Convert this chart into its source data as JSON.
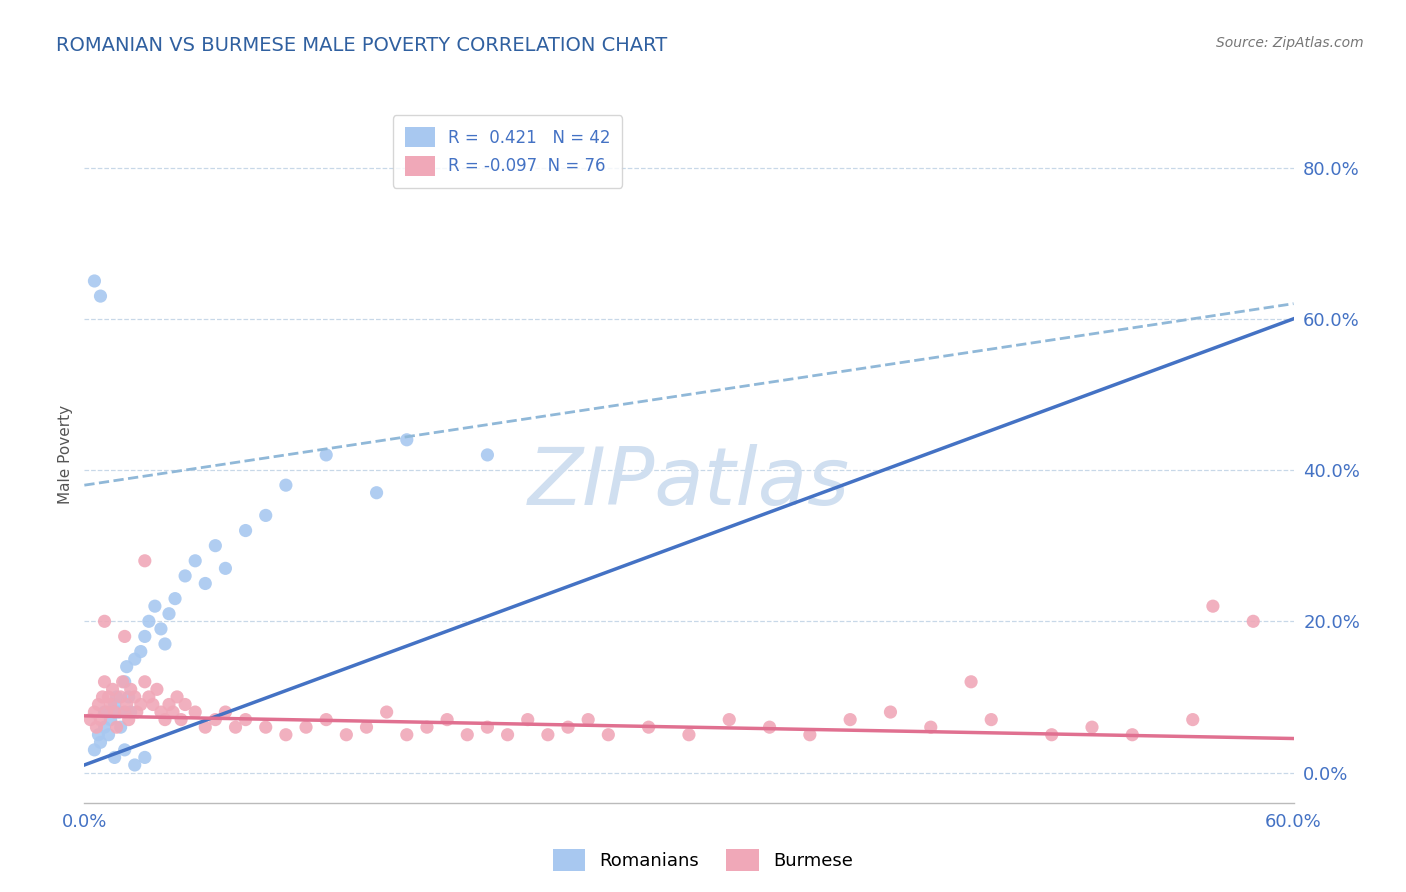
{
  "title": "ROMANIAN VS BURMESE MALE POVERTY CORRELATION CHART",
  "source": "Source: ZipAtlas.com",
  "ylabel": "Male Poverty",
  "ytick_labels": [
    "0.0%",
    "20.0%",
    "40.0%",
    "60.0%",
    "80.0%"
  ],
  "ytick_values": [
    0.0,
    0.2,
    0.4,
    0.6,
    0.8
  ],
  "xlim": [
    0,
    0.6
  ],
  "ylim": [
    -0.04,
    0.88
  ],
  "romanians_R": 0.421,
  "romanians_N": 42,
  "burmese_R": -0.097,
  "burmese_N": 76,
  "romanian_color": "#a8c8f0",
  "burmese_color": "#f0a8b8",
  "romanian_line_color": "#4472c4",
  "burmese_line_color": "#e07090",
  "dashed_line_color": "#90b8d8",
  "grid_color": "#c8d8e8",
  "title_color": "#3060a0",
  "axis_label_color": "#4472c4",
  "watermark_color": "#d0dff0",
  "background_color": "#ffffff",
  "romanian_line_x0": 0.0,
  "romanian_line_y0": 0.01,
  "romanian_line_x1": 0.6,
  "romanian_line_y1": 0.6,
  "dashed_line_x0": 0.0,
  "dashed_line_y0": 0.38,
  "dashed_line_x1": 0.6,
  "dashed_line_y1": 0.62,
  "burmese_line_x0": 0.0,
  "burmese_line_y0": 0.075,
  "burmese_line_x1": 0.6,
  "burmese_line_y1": 0.045,
  "romanians_x": [
    0.005,
    0.007,
    0.008,
    0.01,
    0.01,
    0.012,
    0.013,
    0.015,
    0.016,
    0.017,
    0.018,
    0.02,
    0.021,
    0.022,
    0.023,
    0.025,
    0.028,
    0.03,
    0.032,
    0.035,
    0.038,
    0.04,
    0.042,
    0.045,
    0.05,
    0.055,
    0.06,
    0.065,
    0.07,
    0.08,
    0.09,
    0.1,
    0.12,
    0.145,
    0.16,
    0.2,
    0.005,
    0.008,
    0.015,
    0.02,
    0.025,
    0.03
  ],
  "romanians_y": [
    0.03,
    0.05,
    0.04,
    0.06,
    0.08,
    0.05,
    0.07,
    0.09,
    0.1,
    0.08,
    0.06,
    0.12,
    0.14,
    0.1,
    0.08,
    0.15,
    0.16,
    0.18,
    0.2,
    0.22,
    0.19,
    0.17,
    0.21,
    0.23,
    0.26,
    0.28,
    0.25,
    0.3,
    0.27,
    0.32,
    0.34,
    0.38,
    0.42,
    0.37,
    0.44,
    0.42,
    0.65,
    0.63,
    0.02,
    0.03,
    0.01,
    0.02
  ],
  "burmese_x": [
    0.003,
    0.005,
    0.006,
    0.007,
    0.008,
    0.009,
    0.01,
    0.011,
    0.012,
    0.013,
    0.014,
    0.015,
    0.016,
    0.018,
    0.019,
    0.02,
    0.021,
    0.022,
    0.023,
    0.025,
    0.026,
    0.028,
    0.03,
    0.032,
    0.034,
    0.036,
    0.038,
    0.04,
    0.042,
    0.044,
    0.046,
    0.048,
    0.05,
    0.055,
    0.06,
    0.065,
    0.07,
    0.075,
    0.08,
    0.09,
    0.1,
    0.11,
    0.12,
    0.13,
    0.14,
    0.15,
    0.16,
    0.17,
    0.18,
    0.19,
    0.2,
    0.21,
    0.22,
    0.23,
    0.24,
    0.25,
    0.26,
    0.28,
    0.3,
    0.32,
    0.34,
    0.36,
    0.38,
    0.4,
    0.42,
    0.45,
    0.48,
    0.5,
    0.52,
    0.55,
    0.56,
    0.58,
    0.01,
    0.02,
    0.03,
    0.44
  ],
  "burmese_y": [
    0.07,
    0.08,
    0.06,
    0.09,
    0.07,
    0.1,
    0.12,
    0.08,
    0.1,
    0.09,
    0.11,
    0.08,
    0.06,
    0.1,
    0.12,
    0.08,
    0.09,
    0.07,
    0.11,
    0.1,
    0.08,
    0.09,
    0.12,
    0.1,
    0.09,
    0.11,
    0.08,
    0.07,
    0.09,
    0.08,
    0.1,
    0.07,
    0.09,
    0.08,
    0.06,
    0.07,
    0.08,
    0.06,
    0.07,
    0.06,
    0.05,
    0.06,
    0.07,
    0.05,
    0.06,
    0.08,
    0.05,
    0.06,
    0.07,
    0.05,
    0.06,
    0.05,
    0.07,
    0.05,
    0.06,
    0.07,
    0.05,
    0.06,
    0.05,
    0.07,
    0.06,
    0.05,
    0.07,
    0.08,
    0.06,
    0.07,
    0.05,
    0.06,
    0.05,
    0.07,
    0.22,
    0.2,
    0.2,
    0.18,
    0.28,
    0.12
  ]
}
